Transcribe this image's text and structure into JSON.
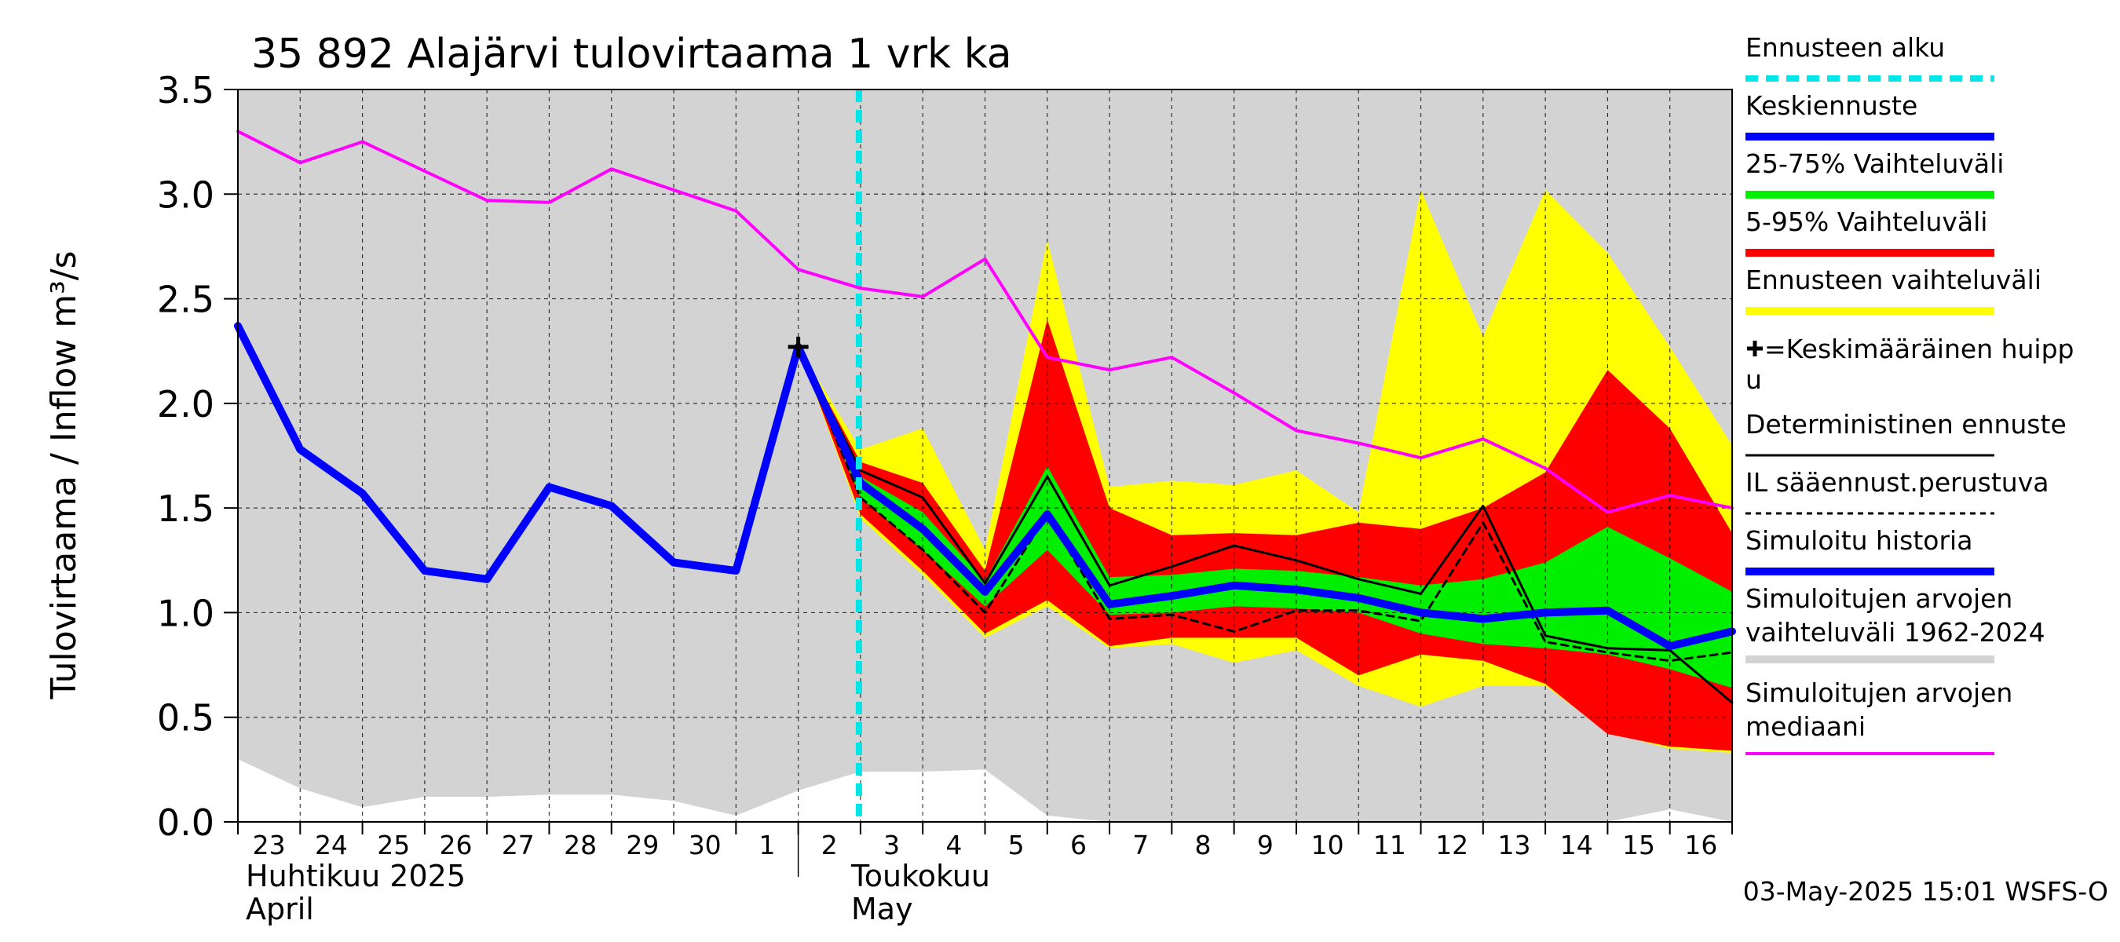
{
  "chart_data": {
    "type": "area",
    "title": "35 892 Alajärvi tulovirtaama 1 vrk ka",
    "ylabel": "Tulovirtaama / Inflow    m³/s",
    "ylim": [
      0,
      3.5
    ],
    "yticks": [
      "0.0",
      "0.5",
      "1.0",
      "1.5",
      "2.0",
      "2.5",
      "3.0",
      "3.5"
    ],
    "grid": true,
    "legend_position": "right",
    "x_day_labels": [
      "23",
      "24",
      "25",
      "26",
      "27",
      "28",
      "29",
      "30",
      "1",
      "2",
      "3",
      "4",
      "5",
      "6",
      "7",
      "8",
      "9",
      "10",
      "11",
      "12",
      "13",
      "14",
      "15",
      "16"
    ],
    "x_month_labels": [
      {
        "day": 0,
        "line1": "Huhtikuu  2025",
        "line2": "April"
      },
      {
        "day": 9,
        "line1": "Toukokuu",
        "line2": "May"
      }
    ],
    "forecast_start_day": 10,
    "footer": "03-May-2025 15:01 WSFS-O",
    "colors": {
      "history_range": "#d3d3d3",
      "forecast_range": "#ffff00",
      "p5_95": "#ff0000",
      "p25_75": "#00ee00",
      "mean_forecast": "#0000ff",
      "simulated_history": "#0000ff",
      "median": "#ff00ff",
      "forecast_start": "#00e5e5",
      "deterministic": "#000000"
    },
    "series": {
      "sim_range_upper": {
        "days": [
          0,
          24
        ],
        "values": [
          3.5,
          3.5
        ]
      },
      "sim_range_lower": {
        "days": [
          0,
          1,
          2,
          3,
          4,
          5,
          6,
          7,
          8,
          9,
          10,
          11,
          12,
          13,
          14,
          15,
          16,
          17,
          18,
          19,
          20,
          21,
          22,
          23,
          24
        ],
        "values": [
          0.3,
          0.16,
          0.07,
          0.12,
          0.12,
          0.13,
          0.13,
          0.1,
          0.03,
          0.15,
          0.24,
          0.24,
          0.25,
          0.03,
          0.0,
          0.0,
          0.0,
          0.0,
          0.0,
          0.0,
          0.0,
          0.0,
          0.0,
          0.06,
          0.0
        ]
      },
      "forecast_range_upper": {
        "days": [
          9,
          10,
          11,
          12,
          13,
          14,
          15,
          16,
          17,
          18,
          19,
          20,
          21,
          22,
          23,
          24
        ],
        "values": [
          2.27,
          1.78,
          1.88,
          1.3,
          2.78,
          1.6,
          1.63,
          1.61,
          1.68,
          1.48,
          3.02,
          2.32,
          3.02,
          2.72,
          2.27,
          1.8
        ]
      },
      "forecast_range_lower": {
        "days": [
          9,
          10,
          11,
          12,
          13,
          14,
          15,
          16,
          17,
          18,
          19,
          20,
          21,
          22,
          23,
          24
        ],
        "values": [
          2.27,
          1.45,
          1.18,
          0.88,
          1.03,
          0.83,
          0.85,
          0.76,
          0.82,
          0.65,
          0.55,
          0.65,
          0.65,
          0.43,
          0.35,
          0.33
        ]
      },
      "p5_95_upper": {
        "days": [
          9,
          10,
          11,
          12,
          13,
          14,
          15,
          16,
          17,
          18,
          19,
          20,
          21,
          22,
          23,
          24
        ],
        "values": [
          2.27,
          1.72,
          1.62,
          1.2,
          2.4,
          1.5,
          1.37,
          1.38,
          1.37,
          1.43,
          1.4,
          1.5,
          1.67,
          2.16,
          1.88,
          1.38
        ]
      },
      "p5_95_lower": {
        "days": [
          9,
          10,
          11,
          12,
          13,
          14,
          15,
          16,
          17,
          18,
          19,
          20,
          21,
          22,
          23,
          24
        ],
        "values": [
          2.27,
          1.47,
          1.2,
          0.9,
          1.06,
          0.84,
          0.88,
          0.88,
          0.88,
          0.7,
          0.8,
          0.77,
          0.66,
          0.42,
          0.36,
          0.34
        ]
      },
      "p25_75_upper": {
        "days": [
          9,
          10,
          11,
          12,
          13,
          14,
          15,
          16,
          17,
          18,
          19,
          20,
          21,
          22,
          23,
          24
        ],
        "values": [
          2.27,
          1.65,
          1.48,
          1.15,
          1.7,
          1.17,
          1.18,
          1.21,
          1.2,
          1.17,
          1.13,
          1.16,
          1.24,
          1.41,
          1.26,
          1.1
        ]
      },
      "p25_75_lower": {
        "days": [
          9,
          10,
          11,
          12,
          13,
          14,
          15,
          16,
          17,
          18,
          19,
          20,
          21,
          22,
          23,
          24
        ],
        "values": [
          2.27,
          1.55,
          1.3,
          1.03,
          1.3,
          0.99,
          1.0,
          1.03,
          1.02,
          1.0,
          0.9,
          0.85,
          0.83,
          0.8,
          0.73,
          0.64
        ]
      },
      "median": {
        "days": [
          0,
          1,
          2,
          3,
          4,
          5,
          6,
          7,
          8,
          9,
          10,
          11,
          12,
          13,
          14,
          15,
          16,
          17,
          18,
          19,
          20,
          21,
          22,
          23,
          24
        ],
        "values": [
          3.3,
          3.15,
          3.25,
          3.11,
          2.97,
          2.96,
          3.12,
          3.02,
          2.92,
          2.64,
          2.55,
          2.51,
          2.69,
          2.22,
          2.16,
          2.22,
          2.05,
          1.87,
          1.81,
          1.74,
          1.83,
          1.69,
          1.48,
          1.56,
          1.5
        ]
      },
      "simulated_history": {
        "days": [
          0,
          1,
          2,
          3,
          4,
          5,
          6,
          7,
          8,
          9,
          10
        ],
        "values": [
          2.37,
          1.78,
          1.57,
          1.2,
          1.16,
          1.6,
          1.51,
          1.24,
          1.2,
          2.27,
          1.62
        ]
      },
      "mean_forecast": {
        "days": [
          10,
          11,
          12,
          13,
          14,
          15,
          16,
          17,
          18,
          19,
          20,
          21,
          22,
          23,
          24
        ],
        "values": [
          1.62,
          1.4,
          1.1,
          1.47,
          1.04,
          1.08,
          1.13,
          1.11,
          1.07,
          1.0,
          0.97,
          1.0,
          1.01,
          0.84,
          0.91
        ]
      },
      "deterministic": {
        "days": [
          9,
          10,
          11,
          12,
          13,
          14,
          15,
          16,
          17,
          18,
          19,
          20,
          21,
          22,
          23,
          24
        ],
        "values": [
          2.27,
          1.68,
          1.55,
          1.14,
          1.65,
          1.13,
          1.22,
          1.32,
          1.25,
          1.16,
          1.09,
          1.51,
          0.89,
          0.83,
          0.82,
          0.57
        ]
      },
      "il_forecast": {
        "days": [
          9,
          10,
          11,
          12,
          13,
          14,
          15,
          16,
          17,
          18,
          19,
          20,
          21,
          22,
          23,
          24
        ],
        "values": [
          2.27,
          1.55,
          1.3,
          1.0,
          1.47,
          0.97,
          0.99,
          0.91,
          1.01,
          1.01,
          0.96,
          1.43,
          0.86,
          0.81,
          0.77,
          0.81
        ]
      },
      "mean_peak": {
        "day": 9,
        "value": 2.27
      }
    },
    "legend": [
      {
        "label": "Ennusteen alku",
        "style": "dash",
        "color": "#00e5e5",
        "width": 8
      },
      {
        "label": "Keskiennuste",
        "style": "line",
        "color": "#0000ff",
        "width": 10
      },
      {
        "label": "25-75% Vaihteluväli",
        "style": "line",
        "color": "#00ee00",
        "width": 10
      },
      {
        "label": "5-95% Vaihteluväli",
        "style": "line",
        "color": "#ff0000",
        "width": 10
      },
      {
        "label": "Ennusteen vaihteluväli",
        "style": "line",
        "color": "#ffff00",
        "width": 10
      },
      {
        "label": "=Keskimääräinen huipp",
        "label2": "u",
        "style": "plus",
        "color": "#000000"
      },
      {
        "label": "Deterministinen ennuste",
        "style": "line",
        "color": "#000000",
        "width": 3
      },
      {
        "label": "IL sääennust.perustuva",
        "style": "dotted",
        "color": "#000000",
        "width": 3
      },
      {
        "label": "Simuloitu historia",
        "style": "line",
        "color": "#0000ff",
        "width": 10
      },
      {
        "label": "Simuloitujen arvojen",
        "label2": "vaihteluväli 1962-2024",
        "style": "line",
        "color": "#d3d3d3",
        "width": 10
      },
      {
        "label": "Simuloitujen arvojen",
        "label2": "mediaani",
        "style": "line",
        "color": "#ff00ff",
        "width": 4
      }
    ]
  }
}
